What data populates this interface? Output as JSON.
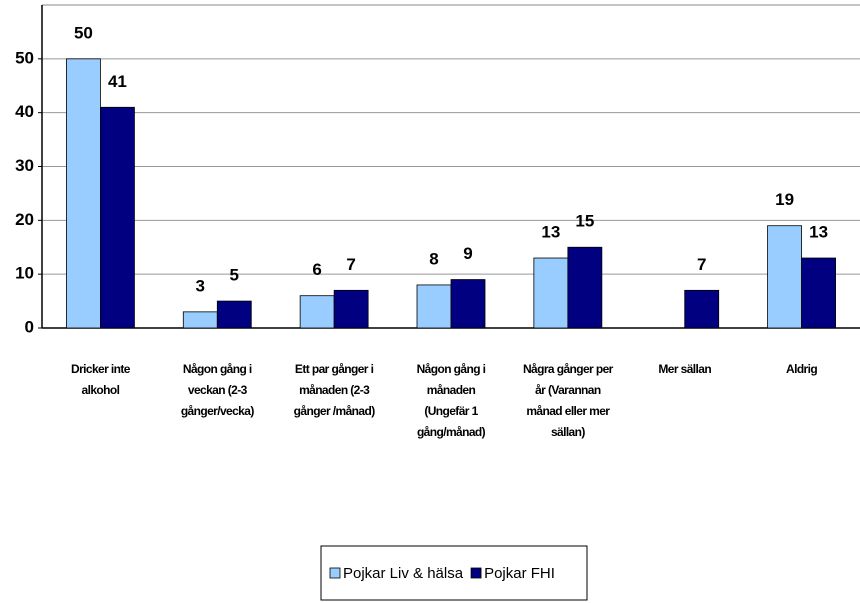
{
  "chart_data": {
    "type": "bar",
    "categories": [
      "Dricker inte alkohol",
      "Någon gång i veckan (2-3 gånger/vecka)",
      "Ett par gånger i månaden (2-3 gånger /månad)",
      "Någon gång i månaden (Ungefär 1 gång/månad)",
      "Några gånger per år (Varannan månad eller mer sällan)",
      "Mer sällan",
      "Aldrig"
    ],
    "series": [
      {
        "name": "Pojkar Liv & hälsa",
        "color": "#99ccff",
        "values": [
          50,
          3,
          6,
          8,
          13,
          null,
          19
        ]
      },
      {
        "name": "Pojkar FHI",
        "color": "#000080",
        "values": [
          41,
          5,
          7,
          9,
          15,
          7,
          13
        ]
      }
    ],
    "ylim": [
      0,
      60
    ],
    "yticks": [
      0,
      10,
      20,
      30,
      40,
      50
    ],
    "grid": true,
    "legend": "bottom"
  }
}
